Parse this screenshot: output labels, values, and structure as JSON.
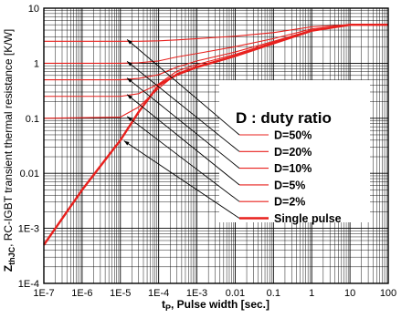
{
  "chart_data": {
    "type": "line",
    "x_scale": "log",
    "y_scale": "log",
    "xlim": [
      "1E-7",
      "100"
    ],
    "ylim": [
      "1E-4",
      "10"
    ],
    "grid": true,
    "x_ticks": [
      "1E-7",
      "1E-6",
      "1E-5",
      "1E-4",
      "1E-3",
      "0.01",
      "0.1",
      "1",
      "10",
      "100"
    ],
    "y_ticks": [
      "1E-4",
      "1E-3",
      "0.01",
      "0.1",
      "1",
      "10"
    ],
    "xlabel_main": "t",
    "xlabel_sub": "P",
    "xlabel_rest": ", Pulse width [sec.]",
    "ylabel_main": "Z",
    "ylabel_sub": "thJC",
    "ylabel_rest": ", RC-IGBT transient thermal resistance [K/W]",
    "legend_title": "D : duty ratio",
    "legend_placement": "right",
    "line_color": "#e8201d",
    "series": [
      {
        "name": "D=50%",
        "x": [
          1e-07,
          1e-05,
          3e-05,
          0.0001,
          0.0003,
          0.001,
          0.01,
          0.1,
          1,
          10,
          100
        ],
        "y": [
          2.5,
          2.5,
          2.5,
          2.55,
          2.65,
          2.8,
          3.1,
          3.6,
          4.6,
          5.0,
          5.0
        ]
      },
      {
        "name": "D=20%",
        "x": [
          1e-07,
          1e-05,
          3e-05,
          0.0001,
          0.0003,
          0.001,
          0.01,
          0.1,
          1,
          10,
          100
        ],
        "y": [
          1.0,
          1.0,
          1.02,
          1.1,
          1.3,
          1.5,
          2.0,
          2.8,
          4.2,
          5.0,
          5.0
        ]
      },
      {
        "name": "D=10%",
        "x": [
          1e-07,
          1e-05,
          3e-05,
          0.0001,
          0.0003,
          0.001,
          0.01,
          0.1,
          1,
          10,
          100
        ],
        "y": [
          0.5,
          0.5,
          0.53,
          0.62,
          0.85,
          1.1,
          1.6,
          2.5,
          4.0,
          5.0,
          5.0
        ]
      },
      {
        "name": "D=5%",
        "x": [
          1e-07,
          1e-05,
          3e-05,
          0.0001,
          0.0003,
          0.001,
          0.01,
          0.1,
          1,
          10,
          100
        ],
        "y": [
          0.25,
          0.25,
          0.28,
          0.42,
          0.72,
          0.95,
          1.45,
          2.4,
          3.95,
          5.0,
          5.0
        ]
      },
      {
        "name": "D=2%",
        "x": [
          1e-07,
          1e-05,
          3e-05,
          0.0001,
          0.0003,
          0.001,
          0.01,
          0.1,
          1,
          10,
          100
        ],
        "y": [
          0.1,
          0.105,
          0.16,
          0.35,
          0.65,
          0.88,
          1.38,
          2.3,
          3.9,
          5.0,
          5.0
        ]
      },
      {
        "name": "Single pulse",
        "x": [
          1e-07,
          1e-06,
          1e-05,
          3e-05,
          0.0001,
          0.0003,
          0.001,
          0.01,
          0.1,
          1,
          10,
          100
        ],
        "y": [
          0.0005,
          0.005,
          0.04,
          0.13,
          0.4,
          0.62,
          0.85,
          1.35,
          2.3,
          3.9,
          5.0,
          5.0
        ]
      }
    ]
  }
}
